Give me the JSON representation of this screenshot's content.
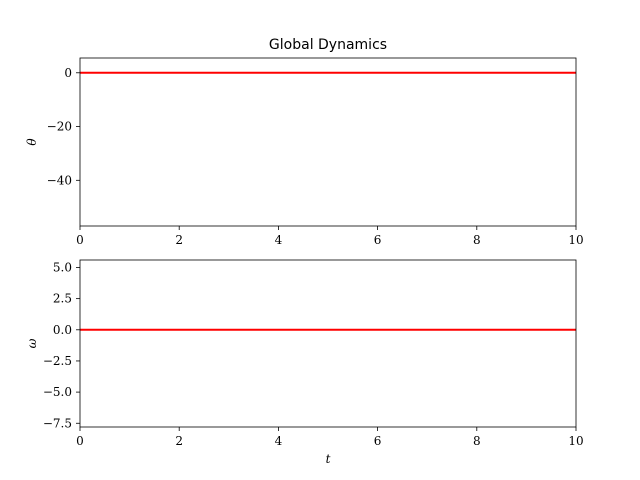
{
  "chart_data": [
    {
      "type": "line",
      "title": "Global Dynamics",
      "xlabel": "",
      "ylabel": "θ",
      "xlim": [
        0,
        10
      ],
      "ylim": [
        -57,
        5.5
      ],
      "xticks": [
        0,
        2,
        4,
        6,
        8,
        10
      ],
      "xtick_labels": [
        "0",
        "2",
        "4",
        "6",
        "8",
        "10"
      ],
      "yticks": [
        0,
        -20,
        -40
      ],
      "ytick_labels": [
        "0",
        "−20",
        "−40"
      ],
      "grid": false,
      "series": [
        {
          "color": "#ff0000",
          "x": [
            0,
            10
          ],
          "y": [
            0,
            0
          ]
        }
      ]
    },
    {
      "type": "line",
      "title": "",
      "xlabel": "t",
      "ylabel": "ω",
      "xlim": [
        0,
        10
      ],
      "ylim": [
        -7.8,
        5.6
      ],
      "xticks": [
        0,
        2,
        4,
        6,
        8,
        10
      ],
      "xtick_labels": [
        "0",
        "2",
        "4",
        "6",
        "8",
        "10"
      ],
      "yticks": [
        5.0,
        2.5,
        0.0,
        -2.5,
        -5.0,
        -7.5
      ],
      "ytick_labels": [
        "5.0",
        "2.5",
        "0.0",
        "−2.5",
        "−5.0",
        "−7.5"
      ],
      "grid": false,
      "series": [
        {
          "color": "#ff0000",
          "x": [
            0,
            10
          ],
          "y": [
            0,
            0
          ]
        }
      ]
    }
  ]
}
